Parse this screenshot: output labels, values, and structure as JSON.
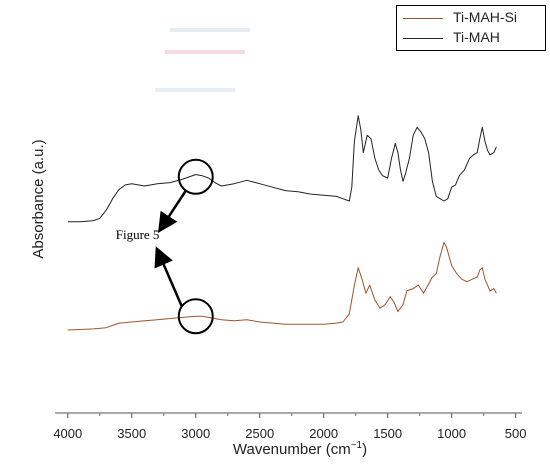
{
  "chart_data": {
    "type": "line",
    "title": "",
    "xlabel": "Wavenumber (cm",
    "xlabel_sup": "−1",
    "xlabel_end": ")",
    "ylabel": "Absorbance (a.u.)",
    "xlim": [
      4100,
      450
    ],
    "x_reversed": true,
    "x_ticks": [
      4000,
      3500,
      3000,
      2500,
      2000,
      1500,
      1000,
      500
    ],
    "x_tick_labels": [
      "4000",
      "3500",
      "3000",
      "2500",
      "2000",
      "1500",
      "1000",
      "500"
    ],
    "y_ticks_shown": false,
    "legend_position": "top-right",
    "series": [
      {
        "name": "Ti-MAH-Si",
        "color": "#a0522d",
        "x": [
          4000,
          3900,
          3800,
          3700,
          3600,
          3500,
          3400,
          3300,
          3200,
          3100,
          3000,
          2950,
          2900,
          2800,
          2700,
          2600,
          2500,
          2400,
          2300,
          2200,
          2100,
          2000,
          1900,
          1850,
          1800,
          1760,
          1730,
          1700,
          1670,
          1640,
          1600,
          1560,
          1520,
          1480,
          1450,
          1420,
          1380,
          1350,
          1300,
          1260,
          1220,
          1180,
          1150,
          1120,
          1090,
          1060,
          1040,
          1000,
          960,
          920,
          880,
          840,
          800,
          780,
          760,
          740,
          720,
          700,
          670,
          650
        ],
        "y": [
          0.06,
          0.065,
          0.07,
          0.08,
          0.12,
          0.13,
          0.14,
          0.15,
          0.16,
          0.17,
          0.18,
          0.18,
          0.17,
          0.15,
          0.14,
          0.15,
          0.13,
          0.12,
          0.11,
          0.11,
          0.11,
          0.11,
          0.12,
          0.13,
          0.2,
          0.45,
          0.6,
          0.5,
          0.38,
          0.45,
          0.32,
          0.25,
          0.28,
          0.35,
          0.3,
          0.22,
          0.28,
          0.4,
          0.42,
          0.45,
          0.38,
          0.46,
          0.52,
          0.55,
          0.7,
          0.82,
          0.78,
          0.62,
          0.55,
          0.5,
          0.48,
          0.5,
          0.52,
          0.58,
          0.6,
          0.5,
          0.45,
          0.4,
          0.42,
          0.38
        ]
      },
      {
        "name": "Ti-MAH",
        "color": "#222222",
        "x": [
          4000,
          3900,
          3800,
          3750,
          3700,
          3650,
          3600,
          3550,
          3500,
          3450,
          3400,
          3300,
          3200,
          3100,
          3000,
          2950,
          2900,
          2850,
          2800,
          2700,
          2600,
          2500,
          2400,
          2300,
          2200,
          2100,
          2000,
          1900,
          1850,
          1800,
          1780,
          1760,
          1730,
          1710,
          1690,
          1660,
          1630,
          1600,
          1570,
          1540,
          1500,
          1470,
          1440,
          1420,
          1400,
          1380,
          1360,
          1330,
          1300,
          1270,
          1240,
          1210,
          1180,
          1150,
          1120,
          1090,
          1060,
          1030,
          1000,
          970,
          940,
          900,
          860,
          830,
          800,
          780,
          760,
          740,
          720,
          700,
          670,
          650
        ],
        "y": [
          1.0,
          1.0,
          1.01,
          1.03,
          1.1,
          1.2,
          1.28,
          1.32,
          1.33,
          1.32,
          1.31,
          1.33,
          1.34,
          1.37,
          1.41,
          1.4,
          1.38,
          1.34,
          1.31,
          1.33,
          1.36,
          1.33,
          1.3,
          1.27,
          1.26,
          1.24,
          1.23,
          1.22,
          1.2,
          1.18,
          1.3,
          1.7,
          1.92,
          1.8,
          1.6,
          1.75,
          1.72,
          1.55,
          1.45,
          1.4,
          1.38,
          1.55,
          1.68,
          1.6,
          1.45,
          1.35,
          1.42,
          1.55,
          1.75,
          1.82,
          1.78,
          1.72,
          1.6,
          1.35,
          1.22,
          1.2,
          1.18,
          1.2,
          1.3,
          1.32,
          1.4,
          1.45,
          1.55,
          1.58,
          1.6,
          1.72,
          1.82,
          1.7,
          1.62,
          1.58,
          1.6,
          1.65
        ]
      }
    ],
    "annotation": {
      "text": "Figure 5",
      "circle_top_x": 3000,
      "circle_top_y": 1.39,
      "circle_bottom_x": 3000,
      "circle_bottom_y": 0.18
    }
  },
  "faded_legend_ghosts": true
}
